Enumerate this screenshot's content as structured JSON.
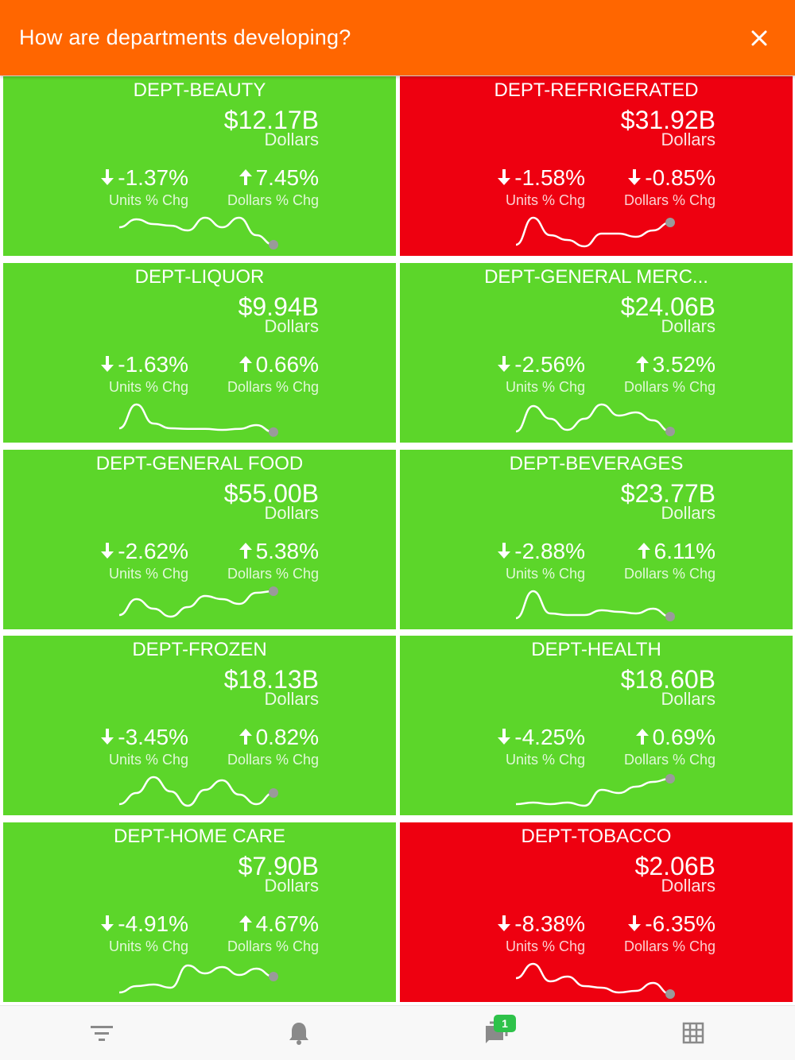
{
  "header": {
    "title": "How are departments developing?"
  },
  "colors": {
    "positive": "#5cd62a",
    "negative": "#ee0010",
    "header": "#ff6600",
    "badge": "#2ec24a",
    "icon": "#8a8a8a"
  },
  "departments": [
    {
      "name": "DEPT-BEAUTY",
      "value": "$12.17B",
      "unit": "Dollars",
      "units_chg": "-1.37%",
      "units_dir": "down",
      "units_label": "Units % Chg",
      "dollars_chg": "7.45%",
      "dollars_dir": "up",
      "dollars_label": "Dollars % Chg",
      "status": "positive",
      "trend": [
        0.35,
        0.1,
        0.25,
        0.3,
        0.45,
        0.05,
        0.35,
        0.05,
        0.6,
        0.9
      ]
    },
    {
      "name": "DEPT-REFRIGERATED",
      "value": "$31.92B",
      "unit": "Dollars",
      "units_chg": "-1.58%",
      "units_dir": "down",
      "units_label": "Units % Chg",
      "dollars_chg": "-0.85%",
      "dollars_dir": "down",
      "dollars_label": "Dollars % Chg",
      "status": "negative",
      "trend": [
        0.9,
        0.05,
        0.6,
        0.75,
        0.95,
        0.55,
        0.55,
        0.65,
        0.45,
        0.2
      ]
    },
    {
      "name": "DEPT-LIQUOR",
      "value": "$9.94B",
      "unit": "Dollars",
      "units_chg": "-1.63%",
      "units_dir": "down",
      "units_label": "Units % Chg",
      "dollars_chg": "0.66%",
      "dollars_dir": "up",
      "dollars_label": "Dollars % Chg",
      "status": "positive",
      "trend": [
        0.8,
        0.05,
        0.65,
        0.8,
        0.82,
        0.82,
        0.85,
        0.82,
        0.7,
        0.92
      ]
    },
    {
      "name": "DEPT-GENERAL MERC...",
      "value": "$24.06B",
      "unit": "Dollars",
      "units_chg": "-2.56%",
      "units_dir": "down",
      "units_label": "Units % Chg",
      "dollars_chg": "3.52%",
      "dollars_dir": "up",
      "dollars_label": "Dollars % Chg",
      "status": "positive",
      "trend": [
        0.9,
        0.1,
        0.5,
        0.85,
        0.5,
        0.05,
        0.4,
        0.3,
        0.55,
        0.9
      ]
    },
    {
      "name": "DEPT-GENERAL FOOD",
      "value": "$55.00B",
      "unit": "Dollars",
      "units_chg": "-2.62%",
      "units_dir": "down",
      "units_label": "Units % Chg",
      "dollars_chg": "5.38%",
      "dollars_dir": "up",
      "dollars_label": "Dollars % Chg",
      "status": "positive",
      "trend": [
        0.8,
        0.3,
        0.6,
        0.85,
        0.55,
        0.2,
        0.3,
        0.45,
        0.1,
        0.05
      ]
    },
    {
      "name": "DEPT-BEVERAGES",
      "value": "$23.77B",
      "unit": "Dollars",
      "units_chg": "-2.88%",
      "units_dir": "down",
      "units_label": "Units % Chg",
      "dollars_chg": "6.11%",
      "dollars_dir": "up",
      "dollars_label": "Dollars % Chg",
      "status": "positive",
      "trend": [
        0.9,
        0.05,
        0.75,
        0.8,
        0.8,
        0.65,
        0.7,
        0.75,
        0.6,
        0.85
      ]
    },
    {
      "name": "DEPT-FROZEN",
      "value": "$18.13B",
      "unit": "Dollars",
      "units_chg": "-3.45%",
      "units_dir": "down",
      "units_label": "Units % Chg",
      "dollars_chg": "0.82%",
      "dollars_dir": "up",
      "dollars_label": "Dollars % Chg",
      "status": "positive",
      "trend": [
        0.9,
        0.55,
        0.05,
        0.5,
        0.95,
        0.45,
        0.15,
        0.6,
        0.9,
        0.55
      ]
    },
    {
      "name": "DEPT-HEALTH",
      "value": "$18.60B",
      "unit": "Dollars",
      "units_chg": "-4.25%",
      "units_dir": "down",
      "units_label": "Units % Chg",
      "dollars_chg": "0.69%",
      "dollars_dir": "up",
      "dollars_label": "Dollars % Chg",
      "status": "positive",
      "trend": [
        0.9,
        0.85,
        0.9,
        0.85,
        0.95,
        0.45,
        0.55,
        0.35,
        0.2,
        0.1
      ]
    },
    {
      "name": "DEPT-HOME CARE",
      "value": "$7.90B",
      "unit": "Dollars",
      "units_chg": "-4.91%",
      "units_dir": "down",
      "units_label": "Units % Chg",
      "dollars_chg": "4.67%",
      "dollars_dir": "up",
      "dollars_label": "Dollars % Chg",
      "status": "positive",
      "trend": [
        0.95,
        0.75,
        0.7,
        0.8,
        0.1,
        0.35,
        0.15,
        0.4,
        0.2,
        0.45
      ]
    },
    {
      "name": "DEPT-TOBACCO",
      "value": "$2.06B",
      "unit": "Dollars",
      "units_chg": "-8.38%",
      "units_dir": "down",
      "units_label": "Units % Chg",
      "dollars_chg": "-6.35%",
      "dollars_dir": "down",
      "dollars_label": "Dollars % Chg",
      "status": "negative",
      "trend": [
        0.5,
        0.05,
        0.6,
        0.45,
        0.75,
        0.8,
        0.95,
        0.9,
        0.65,
        1.0
      ]
    }
  ],
  "bottom_nav": {
    "items": [
      {
        "icon": "filter-icon"
      },
      {
        "icon": "bell-icon"
      },
      {
        "icon": "chat-icon"
      },
      {
        "icon": "grid-icon"
      }
    ],
    "chat_badge": "1"
  }
}
